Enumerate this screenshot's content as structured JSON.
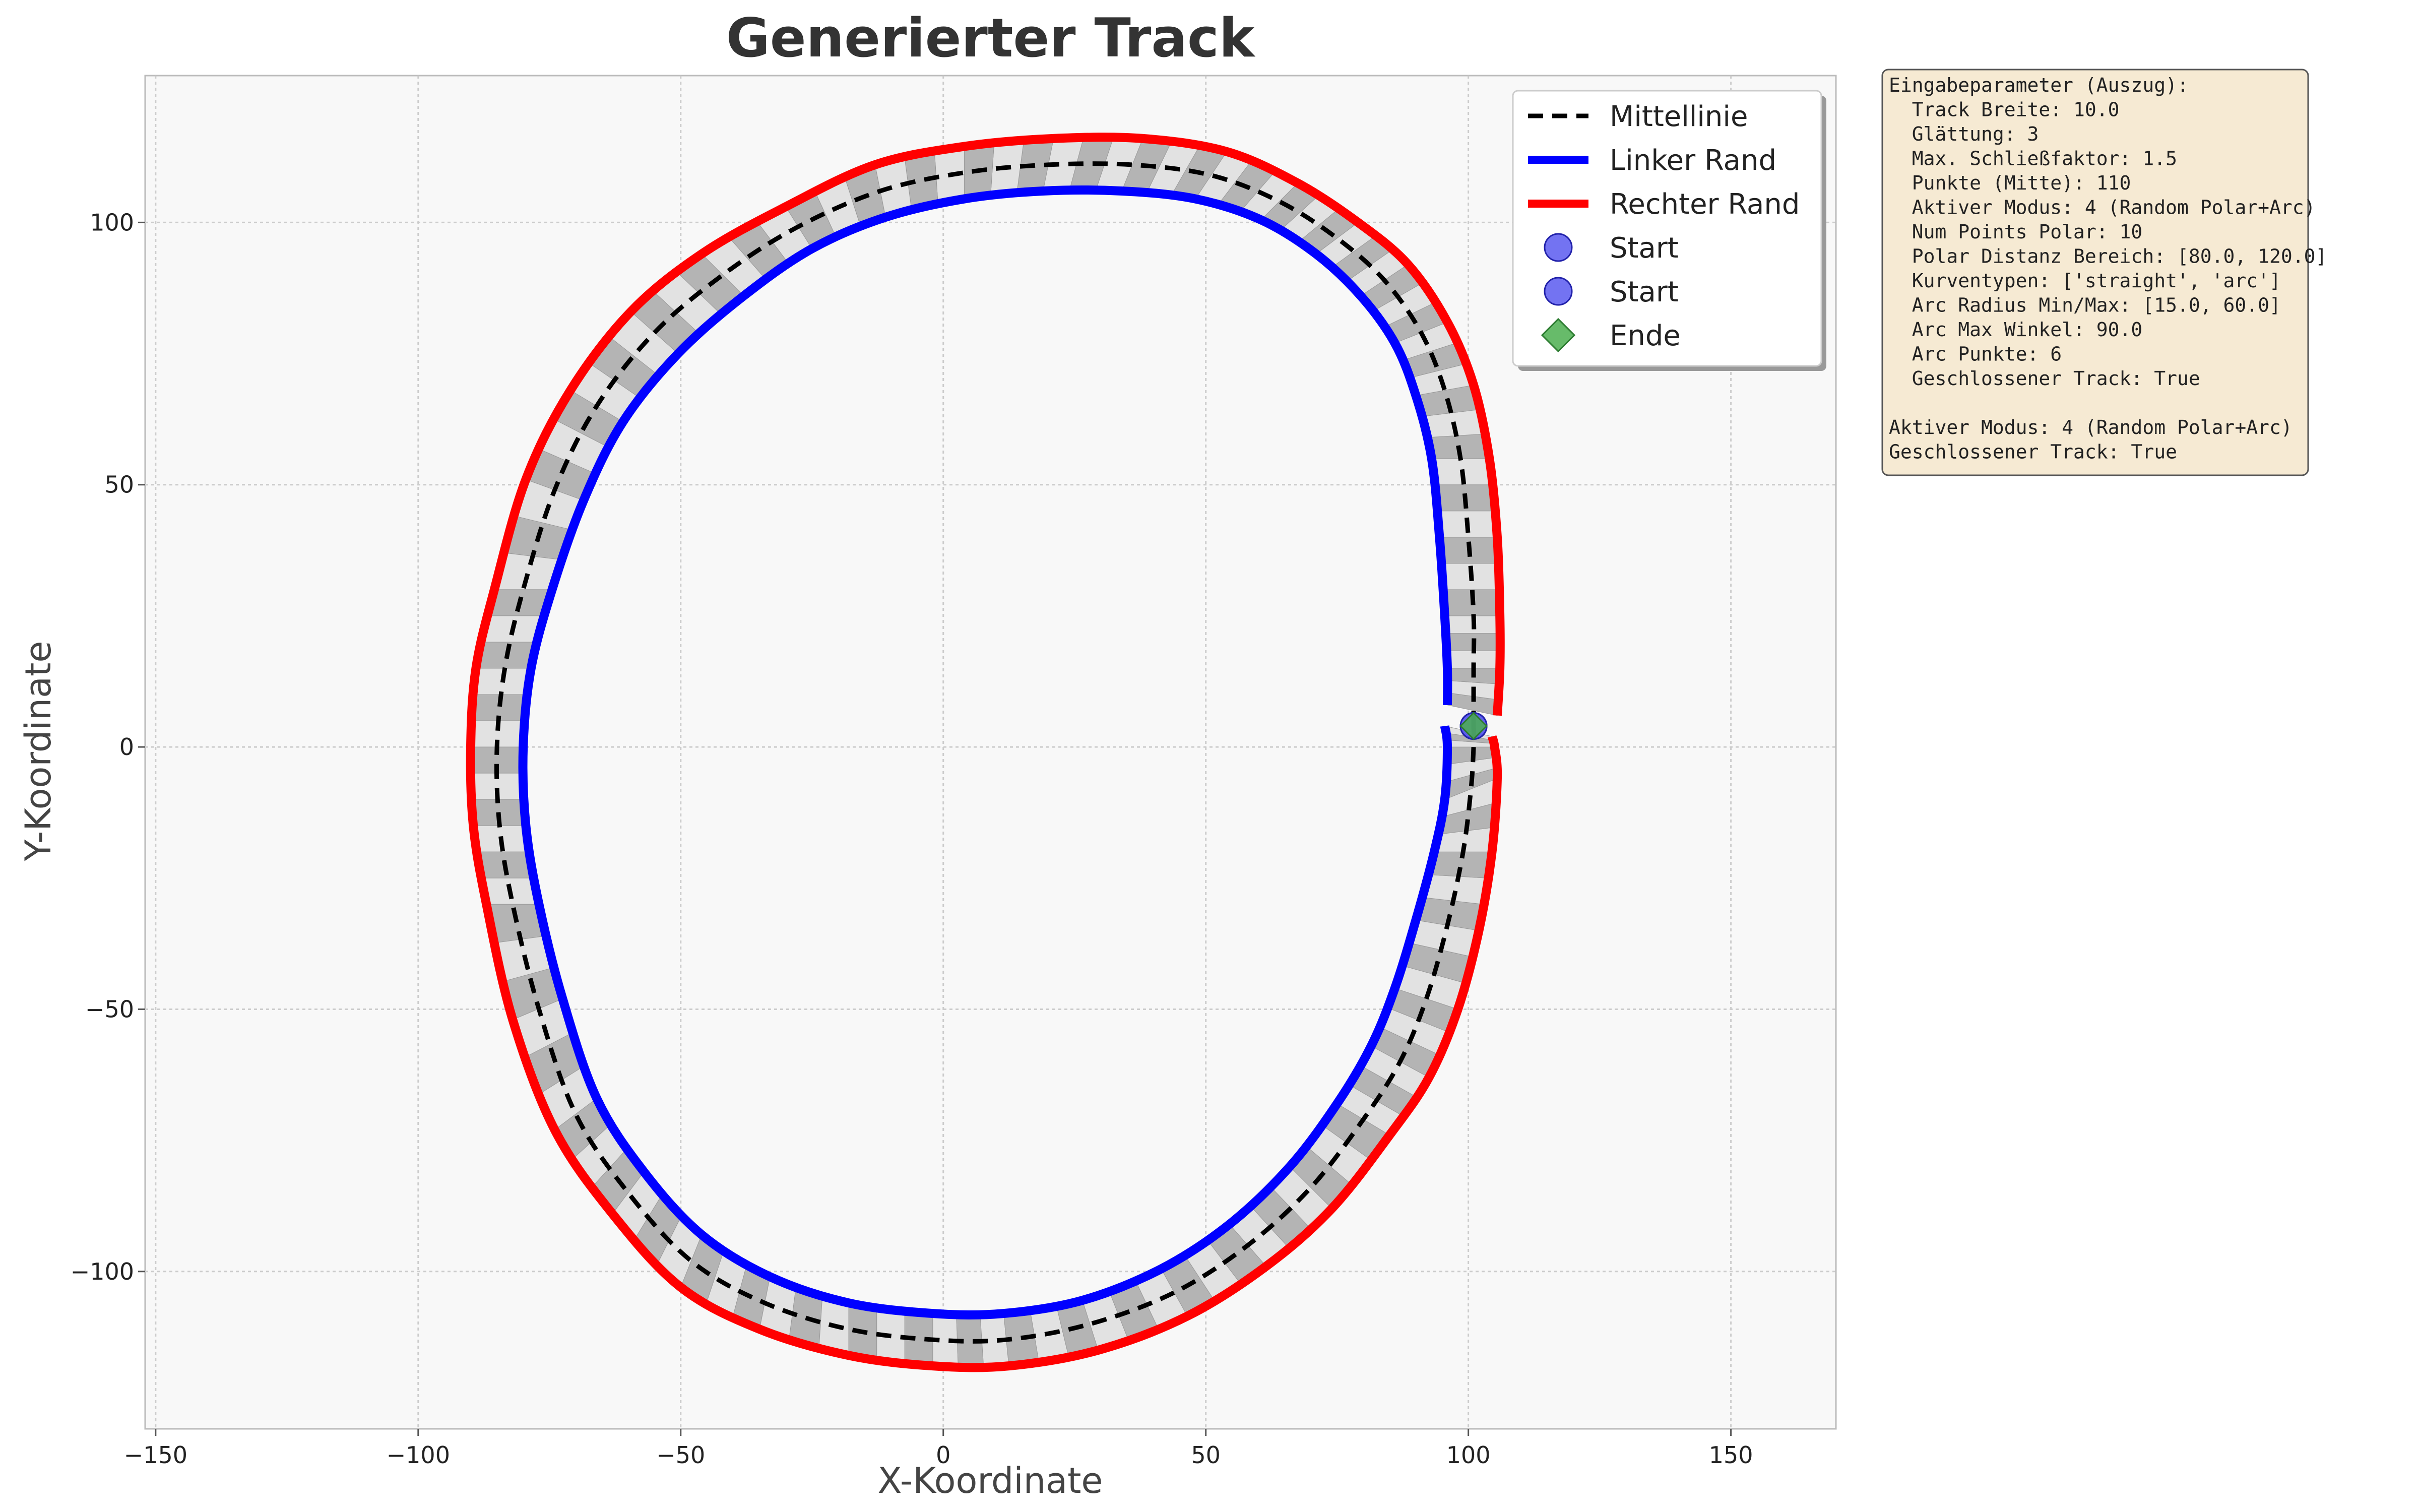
{
  "chart_data": {
    "type": "line",
    "title": "Generierter Track",
    "xlabel": "X-Koordinate",
    "ylabel": "Y-Koordinate",
    "xlim": [
      -152,
      170
    ],
    "ylim": [
      -130,
      128
    ],
    "xticks": [
      -150,
      -100,
      -50,
      0,
      50,
      100,
      150
    ],
    "yticks": [
      -100,
      -50,
      0,
      50,
      100
    ],
    "grid": true,
    "legend_position": "top-right",
    "track_width": 10.0,
    "colors": {
      "center": "#000000",
      "left": "#0000ff",
      "right": "#ff0000",
      "start": "#4444ee",
      "end": "#4caf50",
      "segment_dark": "#b4b4b4",
      "segment_light": "#e2e2e2"
    },
    "series": [
      {
        "name": "Mittellinie",
        "style": "dashed",
        "x": [
          101,
          101,
          101,
          100,
          98.5,
          95.5,
          91,
          84,
          75,
          64,
          51,
          36,
          20,
          4,
          -12,
          -28,
          -42,
          -55,
          -66,
          -74,
          -80,
          -83.5,
          -85,
          -84.5,
          -82,
          -77,
          -70,
          -60,
          -48,
          -34,
          -18,
          -2,
          12,
          28,
          44,
          58,
          70,
          80,
          87,
          92,
          96,
          99,
          100.5,
          101,
          101
        ],
        "y": [
          4,
          15,
          25,
          40,
          55,
          68,
          79,
          89,
          97,
          104,
          109,
          111,
          111,
          109.5,
          106,
          99,
          90,
          79,
          65,
          49,
          30,
          15,
          0,
          -15,
          -30,
          -50,
          -70,
          -85,
          -98,
          -106,
          -111,
          -113,
          -113,
          -110,
          -104,
          -95,
          -84,
          -71,
          -60,
          -48,
          -34,
          -20,
          -8,
          0,
          4
        ]
      },
      {
        "name": "Linker Rand",
        "x": [
          96,
          96,
          95.5,
          94.5,
          93,
          90,
          86,
          79.5,
          71,
          60.5,
          48,
          34,
          19,
          4,
          -11,
          -25,
          -38,
          -50.5,
          -61,
          -68.5,
          -74.5,
          -78.5,
          -80,
          -79.5,
          -77,
          -72.5,
          -66,
          -57,
          -46,
          -33,
          -18,
          -2,
          11.5,
          26.5,
          41.5,
          54.5,
          66,
          75,
          81.5,
          86,
          90,
          93.5,
          95.5,
          96,
          95.5
        ],
        "y": [
          8,
          15,
          25,
          40,
          55,
          67,
          77,
          86,
          94,
          100.5,
          104.5,
          106,
          106,
          104.5,
          101,
          95,
          86,
          75,
          62,
          47,
          30,
          15,
          0,
          -15,
          -30,
          -48,
          -67,
          -81,
          -93,
          -101,
          -106,
          -108,
          -108,
          -105.5,
          -99.5,
          -91,
          -80,
          -68,
          -57,
          -46,
          -33,
          -20,
          -10,
          0,
          4
        ]
      },
      {
        "name": "Rechter Rand",
        "x": [
          105.5,
          106,
          106,
          105.5,
          104,
          101,
          96,
          88.5,
          79,
          67.5,
          54,
          38,
          21,
          4,
          -13,
          -30,
          -46,
          -59.5,
          -71,
          -79.5,
          -85.5,
          -89,
          -90,
          -89.5,
          -87,
          -82,
          -74,
          -63,
          -50,
          -35,
          -18,
          -2,
          12.5,
          29.5,
          46.5,
          61.5,
          74,
          85,
          92.5,
          98,
          102,
          104.5,
          105.5,
          105,
          104.5
        ],
        "y": [
          6,
          15,
          25,
          40,
          55,
          69,
          81,
          92,
          100,
          107.5,
          113.5,
          116,
          116,
          114.5,
          111,
          103,
          94,
          83,
          68,
          51,
          30,
          15,
          0,
          -15,
          -30,
          -52,
          -73,
          -89,
          -103,
          -111,
          -116,
          -118,
          -118,
          -115,
          -108.5,
          -99,
          -88,
          -74,
          -63,
          -50,
          -35,
          -20,
          -6,
          0,
          2
        ]
      }
    ],
    "markers": [
      {
        "name": "Start",
        "shape": "circle",
        "x": 101,
        "y": 4
      },
      {
        "name": "Start",
        "shape": "circle",
        "x": 101,
        "y": 4
      },
      {
        "name": "Ende",
        "shape": "diamond",
        "x": 101,
        "y": 4
      }
    ],
    "legend": {
      "entries": [
        "Mittellinie",
        "Linker Rand",
        "Rechter Rand",
        "Start",
        "Start",
        "Ende"
      ]
    },
    "info_box": {
      "lines": [
        "Eingabeparameter (Auszug):",
        "  Track Breite: 10.0",
        "  Glättung: 3",
        "  Max. Schließfaktor: 1.5",
        "  Punkte (Mitte): 110",
        "  Aktiver Modus: 4 (Random Polar+Arc)",
        "  Num Points Polar: 10",
        "  Polar Distanz Bereich: [80.0, 120.0]",
        "  Kurventypen: ['straight', 'arc']",
        "  Arc Radius Min/Max: [15.0, 60.0]",
        "  Arc Max Winkel: 90.0",
        "  Arc Punkte: 6",
        "  Geschlossener Track: True",
        "",
        "Aktiver Modus: 4 (Random Polar+Arc)",
        "Geschlossener Track: True"
      ]
    }
  }
}
